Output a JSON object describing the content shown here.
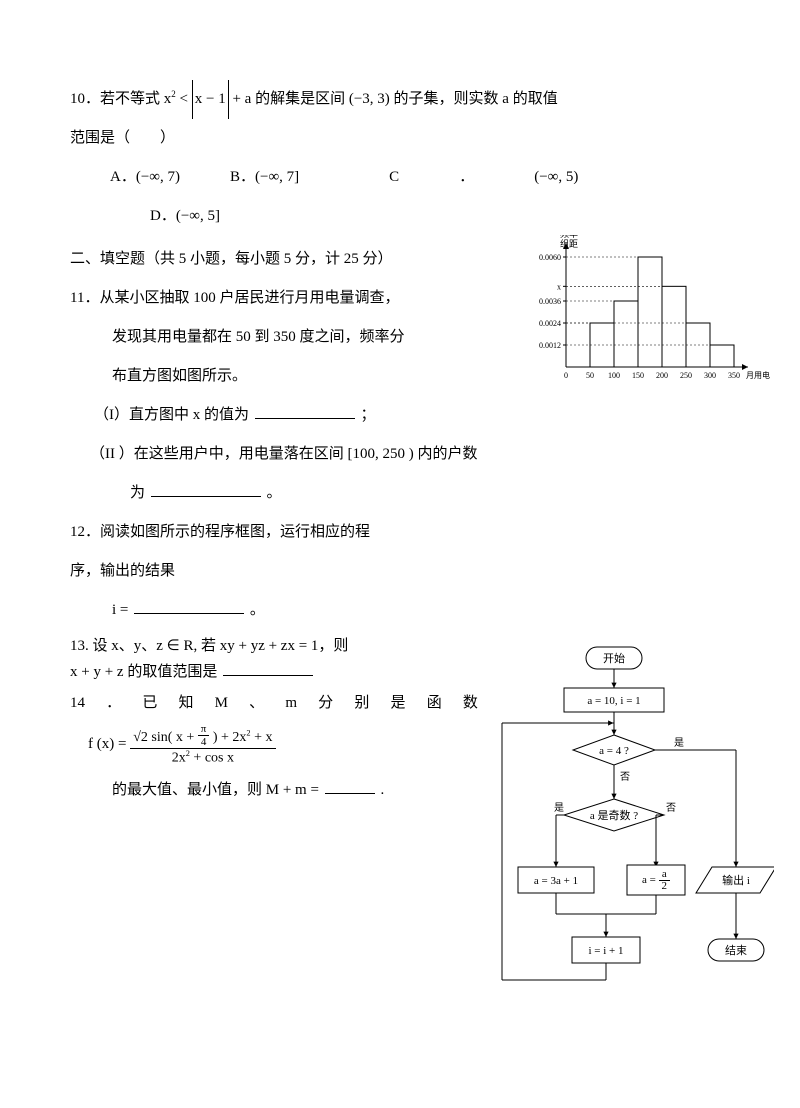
{
  "q10": {
    "text_pre": "10．若不等式 ",
    "math_left": "x",
    "math_sup": "2",
    "math_lt": " < ",
    "abs_inner": "x − 1",
    "plus_a": " + a",
    "text_mid": " 的解集是区间 ",
    "interval": "(−3, 3)",
    "text_post": " 的子集，则实数  a 的取值",
    "line2": "范围是（　　）",
    "optA_label": "A．",
    "optA": "(−∞, 7)",
    "optB_label": "B．",
    "optB": "(−∞, 7]",
    "optC_label": "C",
    "optC_dot": "．",
    "optC": "(−∞, 5)",
    "optD_label": "D．",
    "optD": "(−∞, 5]"
  },
  "sectionII": "二、填空题（共  5 小题，每小题  5 分，计  25 分）",
  "q11": {
    "line1": "11．从某小区抽取  100 户居民进行月用电量调查，",
    "line2": "发现其用电量都在  50 到 350 度之间，频率分",
    "line3": "布直方图如图所示。",
    "partI_pre": "（I）直方图中  x 的值为",
    "partI_post": "；",
    "partII_pre": "（II ）在这些用户中，用电量落在区间   [100, 250 ) 内的户数",
    "partII_line2_pre": "为",
    "partII_post": "。"
  },
  "histogram": {
    "ylabel1": "频率",
    "ylabel2": "组距",
    "yticks": [
      "0.0060",
      "x",
      "0.0036",
      "0.0024",
      "0.0012"
    ],
    "ytick_vals": [
      0.006,
      0.0044,
      0.0036,
      0.0024,
      0.0012
    ],
    "xticks": [
      "0",
      "50",
      "100",
      "150",
      "200",
      "250",
      "300",
      "350"
    ],
    "xlabel": "月用电量/度",
    "bars": [
      {
        "x": 50,
        "h": 0.0024
      },
      {
        "x": 100,
        "h": 0.0036
      },
      {
        "x": 150,
        "h": 0.006
      },
      {
        "x": 200,
        "h": 0.0044
      },
      {
        "x": 250,
        "h": 0.0024
      },
      {
        "x": 300,
        "h": 0.0012
      }
    ],
    "bar_fill": "#ffffff",
    "bar_stroke": "#000000",
    "axis_color": "#000000",
    "font_size": 8
  },
  "q12": {
    "line1": "12．阅读如图所示的程序框图，运行相应的程",
    "line2": "序，输出的结果",
    "line3_pre": "i =",
    "line3_post": "。"
  },
  "q13": {
    "line1": "13. 设 x、y、z ∈ R,  若 xy + yz + zx =   1，则",
    "line2_pre": "x + y + z 的取值范围是 "
  },
  "q14": {
    "line1_chars": [
      "14",
      "．",
      "已",
      "知",
      "M",
      "、",
      "m",
      "分",
      "别",
      "是",
      "函",
      "数"
    ],
    "fx_pre": "f (x) = ",
    "num_sqrt": "√2",
    "num_sin": " sin( x + ",
    "pi": "π",
    "four": "4",
    "num_rest": " ) + 2x",
    "num_sup": "2",
    "num_plusx": " + x",
    "den_2x": "2x",
    "den_sup": "2",
    "den_cos": " + cos x",
    "line_last_pre": "的最大值、最小值，则  M + m = ",
    "line_last_post": " ."
  },
  "flowchart": {
    "start": "开始",
    "init": "a = 10,  i = 1",
    "cond1": "a = 4 ?",
    "cond2": "a 是奇数 ?",
    "yes": "是",
    "no": "否",
    "op1": "a = 3a + 1",
    "op2_lhs": "a = ",
    "op2_num": "a",
    "op2_den": "2",
    "inc": "i = i + 1",
    "out": "输出 i",
    "end": "结束",
    "stroke": "#000000",
    "fill": "#ffffff",
    "font_size": 11
  }
}
